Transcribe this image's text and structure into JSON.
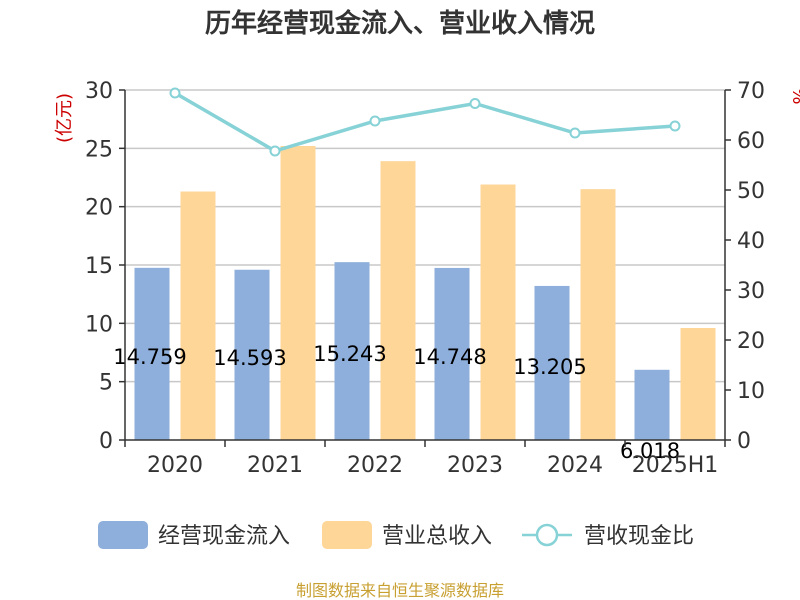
{
  "chart_data": {
    "type": "bar",
    "title": "历年经营现金流入、营业收入情况",
    "categories": [
      "2020",
      "2021",
      "2022",
      "2023",
      "2024",
      "2025H1"
    ],
    "y_left_unit": "(亿元)",
    "y_right_unit": "%",
    "ylim_left": [
      0,
      30
    ],
    "ylim_right": [
      0,
      70
    ],
    "yticks_left": [
      "0",
      "5",
      "10",
      "15",
      "20",
      "25",
      "30"
    ],
    "yticks_right": [
      "0",
      "10",
      "20",
      "30",
      "40",
      "50",
      "60",
      "70"
    ],
    "grid": true,
    "legend_position": "bottom",
    "series": [
      {
        "name": "经营现金流入",
        "kind": "bar",
        "axis": "left",
        "color": "#8eaedb",
        "values": [
          14.759,
          14.593,
          15.243,
          14.748,
          13.205,
          6.018
        ],
        "labels": [
          "14.759",
          "14.593",
          "15.243",
          "14.748",
          "13.205",
          "6.018"
        ]
      },
      {
        "name": "营业总收入",
        "kind": "bar",
        "axis": "left",
        "color": "#fed698",
        "values": [
          21.3,
          25.2,
          23.9,
          21.9,
          21.5,
          9.6
        ]
      },
      {
        "name": "营收现金比",
        "kind": "line",
        "axis": "right",
        "color": "#86d2d6",
        "values": [
          69.4,
          57.8,
          63.8,
          67.3,
          61.4,
          62.8
        ]
      }
    ]
  },
  "source": "制图数据来自恒生聚源数据库"
}
